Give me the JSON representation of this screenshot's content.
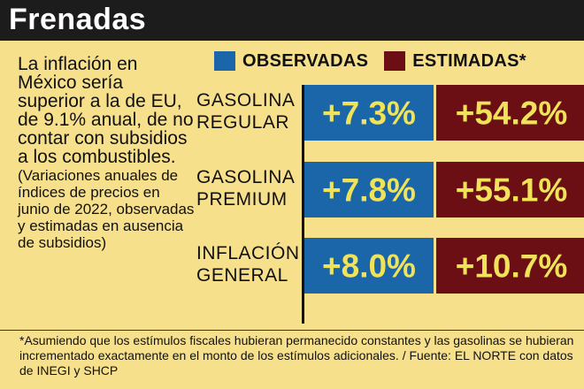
{
  "title": "Frenadas",
  "description": "La inflación en México sería superior a la de EU, de 9.1% anual, de no contar con subsidios a los combustibles.",
  "note": "(Variaciones anuales de índices de precios en junio de 2022, observadas y estimadas en ausencia de subsidios)",
  "legend": [
    {
      "label": "OBSERVADAS",
      "color": "#1b66a8"
    },
    {
      "label": "ESTIMADAS*",
      "color": "#6b0f14"
    }
  ],
  "footnote": "*Asumiendo que los estímulos fiscales hubieran permanecido constantes y las gasolinas se hubieran incrementado exactamente en el monto de los estímulos adicionales. / Fuente: EL NORTE con datos de INEGI y SHCP",
  "chart_data": {
    "type": "bar",
    "orientation": "horizontal",
    "categories": [
      [
        "GASOLINA",
        "REGULAR"
      ],
      [
        "GASOLINA",
        "PREMIUM"
      ],
      [
        "INFLACIÓN",
        "GENERAL"
      ]
    ],
    "series": [
      {
        "name": "OBSERVADAS",
        "color": "#1b66a8",
        "values": [
          7.3,
          7.8,
          8.0
        ],
        "labels": [
          "+7.3%",
          "+7.8%",
          "+8.0%"
        ]
      },
      {
        "name": "ESTIMADAS*",
        "color": "#6b0f14",
        "values": [
          54.2,
          55.1,
          10.7
        ],
        "labels": [
          "+54.2%",
          "+55.1%",
          "+10.7%"
        ]
      }
    ],
    "title": "Frenadas",
    "legend_position": "top",
    "grid": false
  }
}
